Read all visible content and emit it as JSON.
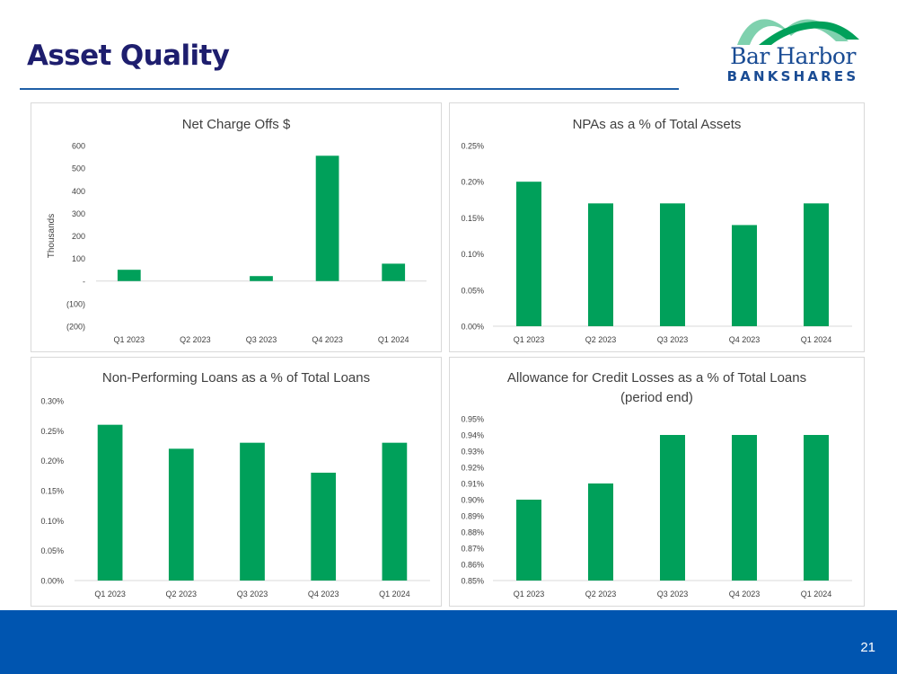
{
  "slide": {
    "title": "Asset Quality",
    "page_number": "21",
    "logo": {
      "line1": "Bar Harbor",
      "line2": "BANKSHARES"
    },
    "colors": {
      "bar": "#00a05a",
      "title": "#1e1e6e",
      "footer": "#0055b0",
      "rule": "#1f5fa7"
    }
  },
  "chart_data": [
    {
      "type": "bar",
      "title": "Net Charge Offs $",
      "ylabel": "Thousands",
      "categories": [
        "Q1 2023",
        "Q2 2023",
        "Q3 2023",
        "Q4 2023",
        "Q1 2024"
      ],
      "values": [
        50,
        0,
        22,
        555,
        77
      ],
      "ylim": [
        -200,
        600
      ],
      "yticks": [
        -200,
        -100,
        0,
        100,
        200,
        300,
        400,
        500,
        600
      ],
      "ytick_labels": [
        "(200)",
        "(100)",
        "-",
        "100",
        "200",
        "300",
        "400",
        "500",
        "600"
      ]
    },
    {
      "type": "bar",
      "title": "NPAs as a % of Total Assets",
      "categories": [
        "Q1 2023",
        "Q2 2023",
        "Q3 2023",
        "Q4 2023",
        "Q1 2024"
      ],
      "values": [
        0.2,
        0.17,
        0.17,
        0.14,
        0.17
      ],
      "ylim": [
        0,
        0.25
      ],
      "yticks": [
        0,
        0.05,
        0.1,
        0.15,
        0.2,
        0.25
      ],
      "ytick_labels": [
        "0.00%",
        "0.05%",
        "0.10%",
        "0.15%",
        "0.20%",
        "0.25%"
      ]
    },
    {
      "type": "bar",
      "title": "Non-Performing Loans as a % of Total Loans",
      "categories": [
        "Q1 2023",
        "Q2 2023",
        "Q3 2023",
        "Q4 2023",
        "Q1 2024"
      ],
      "values": [
        0.26,
        0.22,
        0.23,
        0.18,
        0.23
      ],
      "ylim": [
        0,
        0.3
      ],
      "yticks": [
        0,
        0.05,
        0.1,
        0.15,
        0.2,
        0.25,
        0.3
      ],
      "ytick_labels": [
        "0.00%",
        "0.05%",
        "0.10%",
        "0.15%",
        "0.20%",
        "0.25%",
        "0.30%"
      ]
    },
    {
      "type": "bar",
      "title": "Allowance for Credit Losses as a % of Total Loans",
      "subtitle": "(period end)",
      "categories": [
        "Q1 2023",
        "Q2 2023",
        "Q3 2023",
        "Q4 2023",
        "Q1 2024"
      ],
      "values": [
        0.9,
        0.91,
        0.94,
        0.94,
        0.94
      ],
      "ylim": [
        0.85,
        0.95
      ],
      "yticks": [
        0.85,
        0.86,
        0.87,
        0.88,
        0.89,
        0.9,
        0.91,
        0.92,
        0.93,
        0.94,
        0.95
      ],
      "ytick_labels": [
        "0.85%",
        "0.86%",
        "0.87%",
        "0.88%",
        "0.89%",
        "0.90%",
        "0.91%",
        "0.92%",
        "0.93%",
        "0.94%",
        "0.95%"
      ]
    }
  ]
}
